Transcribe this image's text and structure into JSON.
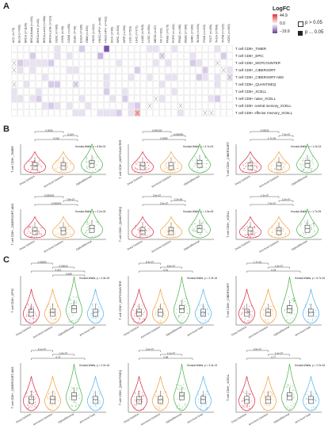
{
  "figure": {
    "panel_labels": [
      "A",
      "B",
      "C"
    ],
    "cancer_types": [
      "ACC (n=79)",
      "BLCA (n=408)",
      "BRCA (n=1100)",
      "BRCA-Basal (n=191)",
      "BRCA-Her2 (n=82)",
      "BRCA-LumA (n=568)",
      "BRCA-LumB (n=219)",
      "CESC (n=306)",
      "CHOL (n=36)",
      "COAD (n=458)",
      "DLBC (n=48)",
      "ESCA (n=185)",
      "GBM (n=153)",
      "HNSC (n=522)",
      "HNSC-HPV+ (n=98)",
      "HNSC-HPV- (n=422)",
      "KICH (n=66)",
      "KIRC (n=533)",
      "KIRP (n=290)",
      "LGG (n=516)",
      "LIHC (n=371)",
      "LUAD (n=515)",
      "LUSC (n=501)",
      "MESO (n=87)",
      "OV (n=303)",
      "PAAD (n=179)",
      "PCPG (n=181)",
      "PRAD (n=498)",
      "READ (n=166)",
      "SARC (n=260)",
      "SKCM (n=103)",
      "STAD (n=415)",
      "TGCT (n=150)",
      "THCA (n=509)",
      "THYM (n=120)",
      "UCEC (n=545)"
    ],
    "rows": [
      "T cell CD8+_TIMER",
      "T cell CD8+_EPIC",
      "T cell CD8+_MCPCOUNTER",
      "T cell CD8+_CIBERSORT",
      "T cell CD8+_CIBERSORT-ABS",
      "T cell CD8+_QUANTISEQ",
      "T cell CD8+_XCELL",
      "T cell CD8+ naive_XCELL",
      "T cell CD8+ central memory_XCELL",
      "T cell CD8+ effector memory_XCELL"
    ],
    "heatmap_legend": {
      "title": "LogFC",
      "max": "44.9",
      "mid": "0.0",
      "min": "−19.9",
      "p_gt": "p > 0.05",
      "p_le": "p ... 0.05",
      "colors": {
        "high": "#e03030",
        "mid": "#ffffff",
        "low": "#6a3d9a"
      }
    },
    "groups_b": [
      "Deep Deletion",
      "Arm-level Deletion",
      "Diploid/Normal"
    ],
    "groups_c": [
      "Deep Deletion",
      "Arm-level Deletion",
      "Diploid/Normal",
      "Arm-level Gain"
    ],
    "group_colors": [
      "#d7263d",
      "#f29e38",
      "#4caf50",
      "#4fb3e6"
    ],
    "panels_b": [
      {
        "ylabel": "T cell CD8+_TIMER",
        "kw": "Kruskal-Wallis, p = 8.8e-04",
        "pvals": [
          "0.0030",
          "0.014",
          "0.016"
        ]
      },
      {
        "ylabel": "T cell CD8+_MCPCOUNTER",
        "kw": "Kruskal-Wallis, p = 4.7e-04",
        "pvals": [
          "0.000130",
          "0.000090",
          "0.0055"
        ]
      },
      {
        "ylabel": "T cell CD8+_CIBERSORT",
        "kw": "Kruskal-Wallis, p = 1.2e-04",
        "pvals": [
          "0.00032",
          "7.3e-07",
          "1.7e-05"
        ]
      },
      {
        "ylabel": "T cell CD8+_CIBERSORT-ABS",
        "kw": "Kruskal-Wallis, p = 2.2e-05",
        "pvals": [
          "0.000003",
          "7.8e-07",
          "0.000043"
        ]
      },
      {
        "ylabel": "T cell CD8+_QUANTISEQ",
        "kw": "Kruskal-Wallis, p = 1.5e-05",
        "pvals": [
          "3.6e-07",
          "2.3e-05",
          "3.5e-07"
        ]
      },
      {
        "ylabel": "T cell CD8+_XCELL",
        "kw": "Kruskal-Wallis, p = 1.7e-05",
        "pvals": [
          "1.3e-07",
          "2.3e-07",
          "7.5e-07"
        ]
      }
    ],
    "panels_c": [
      {
        "ylabel": "T cell CD8+_EPIC",
        "kw": "Kruskal-Wallis, p = 4.3e-15",
        "pvals": [
          "0.00059",
          "0.00016",
          "0.013",
          "0.088"
        ]
      },
      {
        "ylabel": "T cell CD8+_MCPCOUNTER",
        "kw": "Kruskal-Wallis, p = 2.2e-16",
        "pvals": [
          "8.3e-07",
          "8.5e-07",
          "0.51"
        ]
      },
      {
        "ylabel": "T cell CD8+_CIBERSORT",
        "kw": "Kruskal-Wallis, p = 6.7e-16",
        "pvals": [
          "1.7e-15",
          "1.5e-07",
          "0.18"
        ]
      },
      {
        "ylabel": "T cell CD8+_CIBERSORT-ABS",
        "kw": "Kruskal-Wallis, p = 2.2e-16",
        "pvals": [
          "8.1e-07",
          "1.5e-07",
          "0.73"
        ]
      },
      {
        "ylabel": "T cell CD8+_QUANTISEQ",
        "kw": "Kruskal-Wallis, p = 3.2e-13",
        "pvals": [
          "2.5e-07",
          "2.1e-07",
          "0.08"
        ]
      },
      {
        "ylabel": "T cell CD8+_XCELL",
        "kw": "Kruskal-Wallis, p = 2.2e-16",
        "pvals": [
          "6.5e-07",
          "2.1e-07",
          "0.77"
        ]
      }
    ]
  }
}
